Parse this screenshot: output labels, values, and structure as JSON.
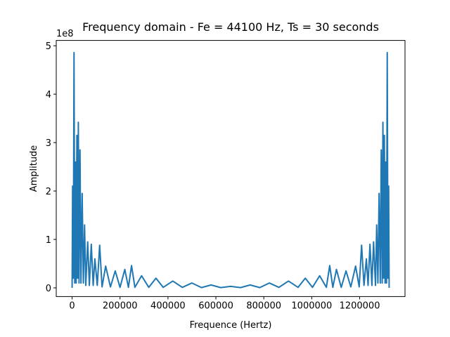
{
  "chart_data": {
    "type": "line",
    "title": "Frequency domain - Fe = 44100 Hz, Ts = 30 seconds",
    "xlabel": "Frequence (Hertz)",
    "ylabel": "Amplitude",
    "y_offset_label": "1e8",
    "xlim": [
      -66150,
      1389150
    ],
    "ylim": [
      -0.18,
      5.11
    ],
    "xticks": [
      0,
      200000,
      400000,
      600000,
      800000,
      1000000,
      1200000
    ],
    "yticks": [
      0,
      1,
      2,
      3,
      4,
      5
    ],
    "series": [
      {
        "color": "#1f77b4",
        "x": [
          0,
          2000,
          5000,
          8000,
          11000,
          14000,
          17000,
          20000,
          23000,
          26000,
          29000,
          33000,
          37000,
          42000,
          47000,
          52000,
          57000,
          65000,
          72000,
          80000,
          88000,
          95000,
          105000,
          115000,
          125000,
          140000,
          160000,
          180000,
          200000,
          220000,
          235000,
          248000,
          262000,
          290000,
          320000,
          350000,
          380000,
          420000,
          460000,
          500000,
          540000,
          580000,
          620000,
          661500,
          703000,
          743000,
          783000,
          823000,
          863000,
          903000,
          943000,
          973000,
          1003000,
          1033000,
          1061000,
          1075000,
          1088000,
          1103000,
          1123000,
          1143000,
          1163000,
          1183000,
          1198000,
          1208000,
          1218000,
          1228000,
          1235000,
          1243000,
          1251000,
          1258000,
          1266000,
          1271000,
          1276000,
          1281000,
          1286000,
          1290000,
          1294000,
          1297000,
          1300000,
          1303000,
          1306000,
          1309000,
          1312000,
          1315000,
          1318000,
          1321000,
          1323000
        ],
        "values": [
          0,
          2.1,
          0.2,
          4.86,
          0.1,
          2.6,
          0.1,
          3.15,
          0.2,
          3.42,
          0.1,
          2.85,
          0.1,
          1.95,
          0.1,
          1.3,
          0.05,
          0.95,
          0.05,
          0.9,
          0.05,
          0.6,
          0.05,
          0.88,
          0.02,
          0.45,
          0.02,
          0.35,
          0.01,
          0.38,
          0.01,
          0.46,
          0.01,
          0.25,
          0.01,
          0.2,
          0.01,
          0.14,
          0.01,
          0.1,
          0.005,
          0.06,
          0.005,
          0.03,
          0.005,
          0.06,
          0.005,
          0.1,
          0.01,
          0.14,
          0.01,
          0.2,
          0.01,
          0.25,
          0.01,
          0.46,
          0.01,
          0.38,
          0.01,
          0.35,
          0.02,
          0.45,
          0.02,
          0.88,
          0.05,
          0.6,
          0.05,
          0.9,
          0.05,
          0.95,
          0.05,
          1.3,
          0.1,
          1.95,
          0.1,
          2.85,
          0.1,
          3.42,
          0.2,
          3.15,
          0.1,
          2.6,
          0.1,
          4.86,
          0.2,
          2.1,
          0
        ]
      }
    ]
  }
}
